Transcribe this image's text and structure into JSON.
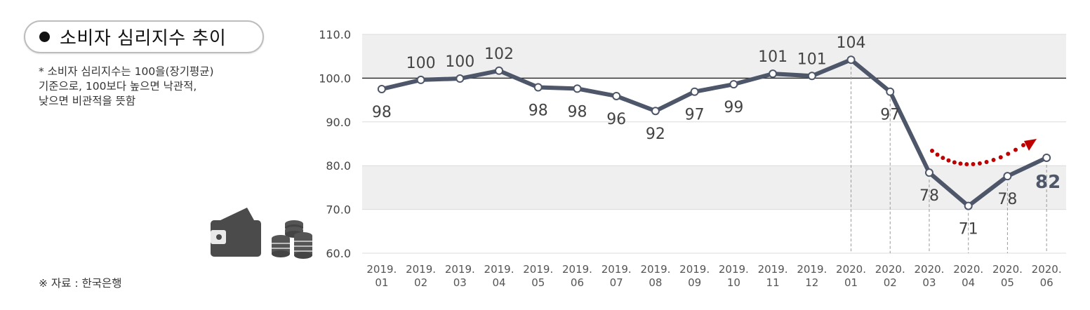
{
  "header": {
    "title": "소비자 심리지수 추이"
  },
  "note": {
    "lines": [
      "* 소비자 심리지수는 100을(장기평균)",
      "기준으로, 100보다 높으면 낙관적,",
      "낮으면 비관적을 뜻함"
    ]
  },
  "source": "※ 자료 : 한국은행",
  "icons": [
    "wallet-icon",
    "coin-stack-icon"
  ],
  "colors": {
    "line": "#4e5669",
    "band": "#efefef",
    "trend_arrow": "#c00000",
    "grid": "#dcdcdc",
    "baseline": "#222222"
  },
  "chart_data": {
    "type": "line",
    "title": "",
    "xlabel": "",
    "ylabel": "",
    "categories": [
      "2019.\n01",
      "2019.\n02",
      "2019.\n03",
      "2019.\n04",
      "2019.\n05",
      "2019.\n06",
      "2019.\n07",
      "2019.\n08",
      "2019.\n09",
      "2019.\n10",
      "2019.\n11",
      "2019.\n12",
      "2020.\n01",
      "2020.\n02",
      "2020.\n03",
      "2020.\n04",
      "2020.\n05",
      "2020.\n06"
    ],
    "series": [
      {
        "values": [
          97.5,
          99.6,
          99.9,
          101.7,
          97.9,
          97.6,
          95.9,
          92.5,
          96.9,
          98.6,
          101.0,
          100.5,
          104.2,
          96.9,
          78.4,
          70.8,
          77.6,
          81.8
        ],
        "labels": [
          "98",
          "100",
          "100",
          "102",
          "98",
          "98",
          "96",
          "92",
          "97",
          "99",
          "101",
          "101",
          "104",
          "97",
          "78",
          "71",
          "78",
          "82"
        ]
      }
    ],
    "ylim": [
      60,
      110
    ],
    "yticks": [
      "60.0",
      "70.0",
      "80.0",
      "90.0",
      "100.0",
      "110.0"
    ],
    "reference_line": 100,
    "shaded_bands": [
      [
        100,
        110
      ],
      [
        70,
        80
      ]
    ],
    "highlight_label": "82",
    "grid": true,
    "legend": "none"
  }
}
